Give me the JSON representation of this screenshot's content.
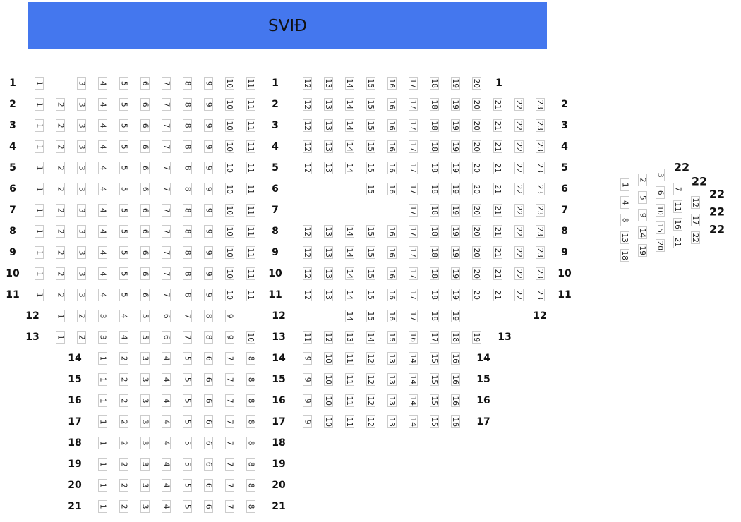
{
  "stage": {
    "label": "SVIÐ",
    "color": "#4477ee"
  },
  "left_block": [
    {
      "row": "1",
      "seats": [
        1,
        3,
        4,
        5,
        6,
        7,
        8,
        9,
        10,
        11
      ]
    },
    {
      "row": "2",
      "seats": [
        1,
        2,
        3,
        4,
        5,
        6,
        7,
        8,
        9,
        10,
        11
      ]
    },
    {
      "row": "3",
      "seats": [
        1,
        2,
        3,
        4,
        5,
        6,
        7,
        8,
        9,
        10,
        11
      ]
    },
    {
      "row": "4",
      "seats": [
        1,
        2,
        3,
        4,
        5,
        6,
        7,
        8,
        9,
        10,
        11
      ]
    },
    {
      "row": "5",
      "seats": [
        1,
        2,
        3,
        4,
        5,
        6,
        7,
        8,
        9,
        10,
        11
      ]
    },
    {
      "row": "6",
      "seats": [
        1,
        2,
        3,
        4,
        5,
        6,
        7,
        8,
        9,
        10,
        11
      ]
    },
    {
      "row": "7",
      "seats": [
        1,
        2,
        3,
        4,
        5,
        6,
        7,
        8,
        9,
        10,
        11
      ]
    },
    {
      "row": "8",
      "seats": [
        1,
        2,
        3,
        4,
        5,
        6,
        7,
        8,
        9,
        10,
        11
      ]
    },
    {
      "row": "9",
      "seats": [
        1,
        2,
        3,
        4,
        5,
        6,
        7,
        8,
        9,
        10,
        11
      ]
    },
    {
      "row": "10",
      "seats": [
        1,
        2,
        3,
        4,
        5,
        6,
        7,
        8,
        9,
        10,
        11
      ]
    },
    {
      "row": "11",
      "seats": [
        1,
        2,
        3,
        4,
        5,
        6,
        7,
        8,
        9,
        10,
        11
      ]
    },
    {
      "row": "12",
      "seats": [
        1,
        2,
        3,
        4,
        5,
        6,
        7,
        8,
        9
      ]
    },
    {
      "row": "13",
      "seats": [
        1,
        2,
        3,
        4,
        5,
        6,
        7,
        8,
        9,
        10
      ]
    },
    {
      "row": "14",
      "seats": [
        1,
        2,
        3,
        4,
        5,
        6,
        7,
        8
      ]
    },
    {
      "row": "15",
      "seats": [
        1,
        2,
        3,
        4,
        5,
        6,
        7,
        8
      ]
    },
    {
      "row": "16",
      "seats": [
        1,
        2,
        3,
        4,
        5,
        6,
        7,
        8
      ]
    },
    {
      "row": "17",
      "seats": [
        1,
        2,
        3,
        4,
        5,
        6,
        7,
        8
      ]
    },
    {
      "row": "18",
      "seats": [
        1,
        2,
        3,
        4,
        5,
        6,
        7,
        8
      ]
    },
    {
      "row": "19",
      "seats": [
        1,
        2,
        3,
        4,
        5,
        6,
        7,
        8
      ]
    },
    {
      "row": "20",
      "seats": [
        1,
        2,
        3,
        4,
        5,
        6,
        7,
        8
      ]
    },
    {
      "row": "21",
      "seats": [
        1,
        2,
        3,
        4,
        5,
        6,
        7,
        8
      ]
    }
  ],
  "right_block": [
    {
      "row": "1",
      "seats": [
        12,
        13,
        14,
        15,
        16,
        17,
        18,
        19,
        20
      ]
    },
    {
      "row": "2",
      "seats": [
        12,
        13,
        14,
        15,
        16,
        17,
        18,
        19,
        20,
        21,
        22,
        23
      ]
    },
    {
      "row": "3",
      "seats": [
        12,
        13,
        14,
        15,
        16,
        17,
        18,
        19,
        20,
        21,
        22,
        23
      ]
    },
    {
      "row": "4",
      "seats": [
        12,
        13,
        14,
        15,
        16,
        17,
        18,
        19,
        20,
        21,
        22,
        23
      ]
    },
    {
      "row": "5",
      "seats": [
        12,
        13,
        14,
        15,
        16,
        17,
        18,
        19,
        20,
        21,
        22,
        23
      ]
    },
    {
      "row": "6",
      "seats": [
        15,
        16,
        17,
        18,
        19,
        20,
        21,
        22,
        23
      ]
    },
    {
      "row": "7",
      "seats": [
        17,
        18,
        19,
        20,
        21,
        22,
        23
      ]
    },
    {
      "row": "8",
      "seats": [
        12,
        13,
        14,
        15,
        16,
        17,
        18,
        19,
        20,
        21,
        22,
        23
      ]
    },
    {
      "row": "9",
      "seats": [
        12,
        13,
        14,
        15,
        16,
        17,
        18,
        19,
        20,
        21,
        22,
        23
      ]
    },
    {
      "row": "10",
      "seats": [
        12,
        13,
        14,
        15,
        16,
        17,
        18,
        19,
        20,
        21,
        22,
        23
      ]
    },
    {
      "row": "11",
      "seats": [
        12,
        13,
        14,
        15,
        16,
        17,
        18,
        19,
        20,
        21,
        22,
        23
      ]
    },
    {
      "row": "12",
      "seats": [
        14,
        15,
        16,
        17,
        18,
        19
      ]
    },
    {
      "row": "13",
      "seats": [
        11,
        12,
        13,
        14,
        15,
        16,
        17,
        18,
        19
      ]
    },
    {
      "row": "14",
      "seats": [
        9,
        10,
        11,
        12,
        13,
        14,
        15,
        16
      ]
    },
    {
      "row": "15",
      "seats": [
        9,
        10,
        11,
        12,
        13,
        14,
        15,
        16
      ]
    },
    {
      "row": "16",
      "seats": [
        9,
        10,
        11,
        12,
        13,
        14,
        15,
        16
      ]
    },
    {
      "row": "17",
      "seats": [
        9,
        10,
        11,
        12,
        13,
        14,
        15,
        16
      ]
    }
  ],
  "box": {
    "columns": [
      [
        1,
        4,
        8,
        13,
        18
      ],
      [
        2,
        5,
        9,
        14,
        19
      ],
      [
        3,
        6,
        10,
        15,
        20
      ],
      [
        7,
        11,
        16,
        21
      ],
      [
        12,
        17,
        22
      ]
    ],
    "labels": [
      "22",
      "22",
      "22",
      "22",
      "22"
    ]
  }
}
